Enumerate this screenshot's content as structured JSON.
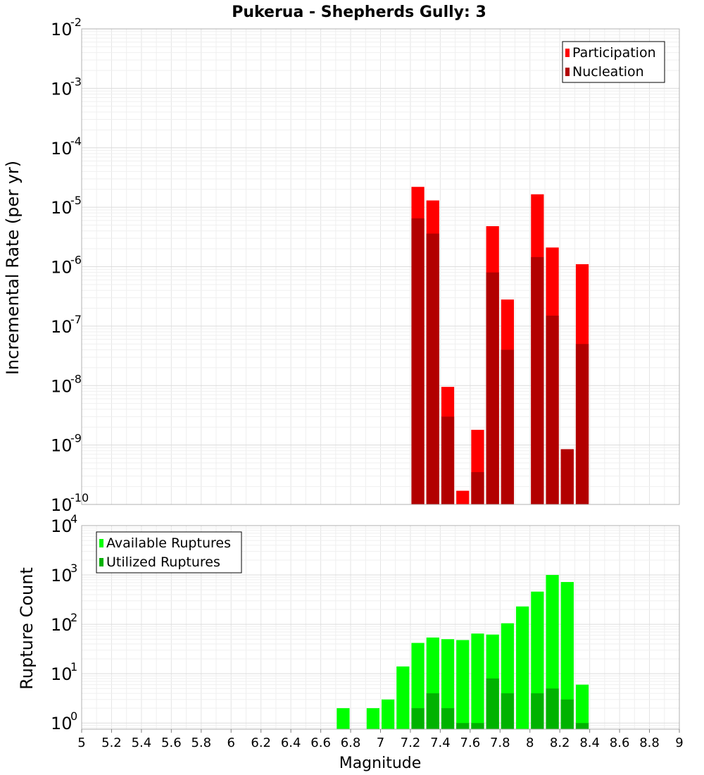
{
  "chart_data": [
    {
      "type": "bar",
      "title": "Pukerua - Shepherds Gully: 3",
      "ylabel": "Incremental Rate (per yr)",
      "yscale": "log",
      "ylim": [
        1e-10,
        0.01
      ],
      "xlim": [
        5,
        9
      ],
      "grid": true,
      "legend_position": "top-right",
      "bar_width": 0.1,
      "x": [
        7.25,
        7.35,
        7.45,
        7.55,
        7.65,
        7.75,
        7.85,
        8.05,
        8.15,
        8.25,
        8.35
      ],
      "series": [
        {
          "name": "Participation",
          "color": "#ff0000",
          "values": [
            2.2e-05,
            1.3e-05,
            9.5e-09,
            1.7e-10,
            1.8e-09,
            4.8e-06,
            2.8e-07,
            1.65e-05,
            2.1e-06,
            8.5e-10,
            1.1e-06
          ]
        },
        {
          "name": "Nucleation",
          "color": "#b20000",
          "values": [
            6.5e-06,
            3.6e-06,
            3e-09,
            null,
            3.5e-10,
            8e-07,
            4e-08,
            1.45e-06,
            1.5e-07,
            8.5e-10,
            5e-08
          ]
        }
      ]
    },
    {
      "type": "bar",
      "xlabel": "Magnitude",
      "ylabel": "Rupture Count",
      "yscale": "log",
      "ylim": [
        0.75,
        10000
      ],
      "xlim": [
        5,
        9
      ],
      "xticks": [
        "5",
        "5.2",
        "5.4",
        "5.6",
        "5.8",
        "6",
        "6.2",
        "6.4",
        "6.6",
        "6.8",
        "7",
        "7.2",
        "7.4",
        "7.6",
        "7.8",
        "8",
        "8.2",
        "8.4",
        "8.6",
        "8.8",
        "9"
      ],
      "grid": true,
      "legend_position": "top-left",
      "bar_width": 0.1,
      "x": [
        6.75,
        6.95,
        7.05,
        7.15,
        7.25,
        7.35,
        7.45,
        7.55,
        7.65,
        7.75,
        7.85,
        7.95,
        8.05,
        8.15,
        8.25,
        8.35
      ],
      "series": [
        {
          "name": "Available Ruptures",
          "color": "#00ff00",
          "values": [
            2,
            2,
            3,
            14,
            42,
            54,
            50,
            48,
            65,
            62,
            105,
            230,
            460,
            1000,
            720,
            6
          ]
        },
        {
          "name": "Utilized Ruptures",
          "color": "#00b200",
          "values": [
            null,
            null,
            null,
            null,
            2,
            4,
            2,
            1,
            1,
            8,
            4,
            null,
            4,
            5,
            3,
            1
          ]
        }
      ]
    }
  ]
}
